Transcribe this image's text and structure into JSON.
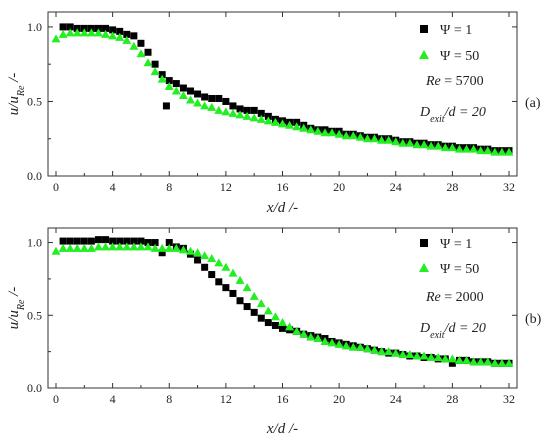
{
  "chart_data": [
    {
      "type": "scatter",
      "panel_label": "(a)",
      "xlabel": "x/d /-",
      "ylabel": "u/u_Re /-",
      "x_ticks": [
        "0",
        "4",
        "8",
        "12",
        "16",
        "20",
        "24",
        "28",
        "32"
      ],
      "y_ticks": [
        "0.0",
        "0.5",
        "1.0"
      ],
      "xlim": [
        0,
        32
      ],
      "ylim": [
        0,
        1.1
      ],
      "annotations": {
        "re": "Re = 5700",
        "dexit": "D_exit/d = 20"
      },
      "series": [
        {
          "name": "Ψ = 1",
          "marker": "square",
          "color": "#000000",
          "x": [
            0.5,
            1.0,
            1.5,
            2.0,
            2.5,
            3.0,
            3.5,
            4.0,
            4.5,
            5.0,
            5.5,
            6.0,
            6.5,
            7.0,
            7.5,
            7.8,
            8.0,
            8.5,
            9.0,
            9.5,
            10.0,
            10.5,
            11.0,
            11.5,
            12.0,
            12.5,
            13.0,
            13.5,
            14.0,
            14.5,
            15.0,
            15.5,
            16.0,
            16.5,
            17.0,
            17.5,
            18.0,
            18.5,
            19.0,
            19.5,
            20.0,
            20.5,
            21.0,
            21.5,
            22.0,
            22.5,
            23.0,
            23.5,
            24.0,
            24.5,
            25.0,
            25.5,
            26.0,
            26.5,
            27.0,
            27.5,
            28.0,
            28.5,
            29.0,
            29.5,
            30.0,
            30.5,
            31.0,
            31.5,
            32.0
          ],
          "y": [
            1.0,
            1.0,
            0.99,
            0.99,
            0.99,
            0.99,
            0.99,
            0.98,
            0.97,
            0.95,
            0.94,
            0.89,
            0.83,
            0.75,
            0.68,
            0.47,
            0.64,
            0.62,
            0.59,
            0.57,
            0.55,
            0.53,
            0.52,
            0.52,
            0.5,
            0.47,
            0.45,
            0.44,
            0.44,
            0.42,
            0.4,
            0.38,
            0.37,
            0.36,
            0.36,
            0.34,
            0.32,
            0.31,
            0.31,
            0.3,
            0.3,
            0.28,
            0.28,
            0.27,
            0.26,
            0.26,
            0.25,
            0.25,
            0.24,
            0.23,
            0.23,
            0.22,
            0.22,
            0.21,
            0.21,
            0.2,
            0.2,
            0.19,
            0.19,
            0.19,
            0.18,
            0.18,
            0.17,
            0.17,
            0.17
          ]
        },
        {
          "name": "Ψ = 50",
          "marker": "triangle",
          "color": "#22ee22",
          "x": [
            0,
            0.5,
            1.0,
            1.5,
            2.0,
            2.5,
            3.0,
            3.5,
            4.0,
            4.5,
            5.0,
            5.5,
            6.0,
            6.5,
            7.0,
            7.5,
            8.0,
            8.5,
            9.0,
            9.5,
            10.0,
            10.5,
            11.0,
            11.5,
            12.0,
            12.5,
            13.0,
            13.5,
            14.0,
            14.5,
            15.0,
            15.5,
            16.0,
            16.5,
            17.0,
            17.5,
            18.0,
            18.5,
            19.0,
            19.5,
            20.0,
            20.5,
            21.0,
            21.5,
            22.0,
            22.5,
            23.0,
            23.5,
            24.0,
            24.5,
            25.0,
            25.5,
            26.0,
            26.5,
            27.0,
            27.5,
            28.0,
            28.5,
            29.0,
            29.5,
            30.0,
            30.5,
            31.0,
            31.5,
            32.0
          ],
          "y": [
            0.92,
            0.95,
            0.96,
            0.96,
            0.96,
            0.96,
            0.96,
            0.95,
            0.94,
            0.93,
            0.91,
            0.87,
            0.82,
            0.76,
            0.7,
            0.65,
            0.6,
            0.57,
            0.54,
            0.51,
            0.49,
            0.47,
            0.46,
            0.44,
            0.43,
            0.42,
            0.41,
            0.4,
            0.39,
            0.38,
            0.37,
            0.36,
            0.35,
            0.34,
            0.33,
            0.32,
            0.31,
            0.3,
            0.29,
            0.29,
            0.28,
            0.27,
            0.27,
            0.26,
            0.25,
            0.25,
            0.24,
            0.24,
            0.23,
            0.22,
            0.22,
            0.21,
            0.21,
            0.2,
            0.2,
            0.19,
            0.19,
            0.18,
            0.18,
            0.18,
            0.17,
            0.17,
            0.16,
            0.16,
            0.16
          ]
        }
      ]
    },
    {
      "type": "scatter",
      "panel_label": "(b)",
      "xlabel": "x/d /-",
      "ylabel": "u/u_Re /-",
      "x_ticks": [
        "0",
        "4",
        "8",
        "12",
        "16",
        "20",
        "24",
        "28",
        "32"
      ],
      "y_ticks": [
        "0.0",
        "0.5",
        "1.0"
      ],
      "xlim": [
        0,
        32
      ],
      "ylim": [
        0,
        1.1
      ],
      "annotations": {
        "re": "Re = 2000",
        "dexit": "D_exit/d = 20"
      },
      "series": [
        {
          "name": "Ψ = 1",
          "marker": "square",
          "color": "#000000",
          "x": [
            0.5,
            1.0,
            1.5,
            2.0,
            2.5,
            3.0,
            3.5,
            4.0,
            4.5,
            5.0,
            5.5,
            6.0,
            6.5,
            7.0,
            7.5,
            8.0,
            8.5,
            9.0,
            9.5,
            10.0,
            10.5,
            11.0,
            11.5,
            12.0,
            12.5,
            13.0,
            13.5,
            14.0,
            14.5,
            15.0,
            15.5,
            16.0,
            16.5,
            17.0,
            17.5,
            18.0,
            18.5,
            19.0,
            19.5,
            20.0,
            20.5,
            21.0,
            21.5,
            22.0,
            22.5,
            23.0,
            23.5,
            24.0,
            24.5,
            25.0,
            25.5,
            26.0,
            26.5,
            27.0,
            27.5,
            28.0,
            28.5,
            29.0,
            29.5,
            30.0,
            30.5,
            31.0,
            31.5,
            32.0
          ],
          "y": [
            1.01,
            1.01,
            1.01,
            1.01,
            1.01,
            1.02,
            1.02,
            1.01,
            1.01,
            1.01,
            1.01,
            1.01,
            1.0,
            1.0,
            0.93,
            1.0,
            0.97,
            0.96,
            0.92,
            0.88,
            0.83,
            0.78,
            0.73,
            0.69,
            0.65,
            0.6,
            0.56,
            0.52,
            0.48,
            0.45,
            0.43,
            0.41,
            0.4,
            0.39,
            0.37,
            0.36,
            0.35,
            0.34,
            0.32,
            0.31,
            0.3,
            0.29,
            0.28,
            0.27,
            0.26,
            0.25,
            0.24,
            0.24,
            0.23,
            0.22,
            0.22,
            0.21,
            0.21,
            0.2,
            0.2,
            0.17,
            0.19,
            0.19,
            0.18,
            0.18,
            0.18,
            0.17,
            0.17,
            0.17
          ]
        },
        {
          "name": "Ψ = 50",
          "marker": "triangle",
          "color": "#22ee22",
          "x": [
            0,
            0.5,
            1.0,
            1.5,
            2.0,
            2.5,
            3.0,
            3.5,
            4.0,
            4.5,
            5.0,
            5.5,
            6.0,
            6.5,
            7.0,
            7.5,
            8.0,
            8.5,
            9.0,
            9.5,
            10.0,
            10.5,
            11.0,
            11.5,
            12.0,
            12.5,
            13.0,
            13.5,
            14.0,
            14.5,
            15.0,
            15.5,
            16.0,
            16.5,
            17.0,
            17.5,
            18.0,
            18.5,
            19.0,
            19.5,
            20.0,
            20.5,
            21.0,
            21.5,
            22.0,
            22.5,
            23.0,
            23.5,
            24.0,
            24.5,
            25.0,
            25.5,
            26.0,
            26.5,
            27.0,
            27.5,
            28.0,
            28.5,
            29.0,
            29.5,
            30.0,
            30.5,
            31.0,
            31.5,
            32.0
          ],
          "y": [
            0.94,
            0.96,
            0.96,
            0.96,
            0.96,
            0.96,
            0.97,
            0.97,
            0.97,
            0.97,
            0.97,
            0.97,
            0.97,
            0.97,
            0.96,
            0.96,
            0.96,
            0.96,
            0.95,
            0.94,
            0.93,
            0.91,
            0.89,
            0.86,
            0.83,
            0.79,
            0.74,
            0.69,
            0.63,
            0.58,
            0.53,
            0.49,
            0.45,
            0.42,
            0.39,
            0.37,
            0.35,
            0.34,
            0.32,
            0.31,
            0.3,
            0.29,
            0.28,
            0.28,
            0.27,
            0.26,
            0.25,
            0.25,
            0.24,
            0.23,
            0.23,
            0.22,
            0.22,
            0.21,
            0.21,
            0.2,
            0.2,
            0.19,
            0.19,
            0.18,
            0.18,
            0.18,
            0.17,
            0.17,
            0.17
          ]
        }
      ]
    }
  ]
}
